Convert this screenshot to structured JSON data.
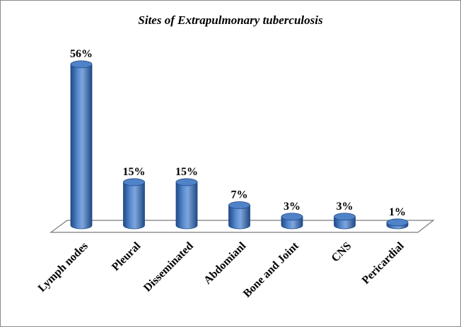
{
  "chart_data": {
    "type": "bar",
    "title": "Sites of Extrapulmonary tuberculosis",
    "categories": [
      "Lymph nodes",
      "Pleural",
      "Disseminated",
      "Abdomianl",
      "Bone and Joint",
      "CNS",
      "Pericardial"
    ],
    "values": [
      56,
      15,
      15,
      7,
      3,
      3,
      1
    ],
    "data_labels": [
      "56%",
      "15%",
      "15%",
      "7%",
      "3%",
      "3%",
      "1%"
    ],
    "grid": false,
    "legend": "none",
    "bar_style": "3d-cylinder",
    "colors": {
      "bar_main": "#3d70b8",
      "bar_dark": "#1f4a86",
      "bar_light": "#7fa6dc",
      "floor": "#ffffff",
      "floor_edge": "#7a7a7a"
    }
  }
}
